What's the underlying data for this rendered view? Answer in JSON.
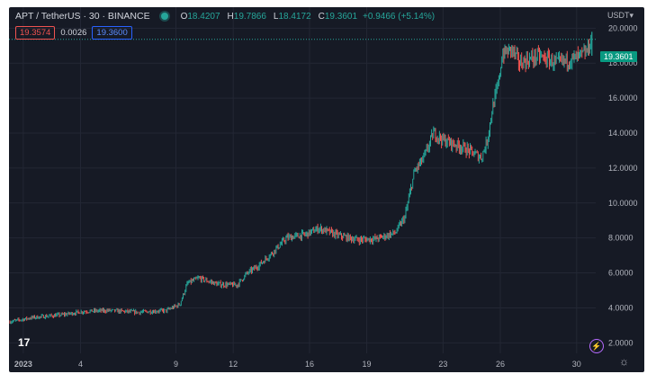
{
  "header": {
    "title": "APT / TetherUS · 30 · BINANCE",
    "ohlc": [
      {
        "key": "O",
        "value": "18.4207"
      },
      {
        "key": "H",
        "value": "19.7866"
      },
      {
        "key": "L",
        "value": "18.4172"
      },
      {
        "key": "C",
        "value": "19.3601"
      }
    ],
    "change": "+0.9466 (+5.14%)"
  },
  "bid_ask": {
    "bid": "19.3574",
    "spread": "0.0026",
    "ask": "19.3600"
  },
  "currency": "USDT▾",
  "last_price": "19.3601",
  "colors": {
    "up": "#26a69a",
    "down": "#ef5350",
    "background": "#161a25",
    "grid": "#232734"
  },
  "icons": {
    "logo": "tradingview-logo-icon",
    "flash": "lightning-icon",
    "settings": "gear-icon"
  },
  "chart_data": {
    "type": "candlestick",
    "x_tick_labels": [
      "2023",
      "4",
      "9",
      "12",
      "16",
      "19",
      "23",
      "26",
      "30"
    ],
    "x_tick_day": [
      1,
      4,
      9,
      12,
      16,
      19,
      23,
      26,
      30
    ],
    "y_tick_labels": [
      "2.0000",
      "4.0000",
      "6.0000",
      "8.0000",
      "10.0000",
      "12.0000",
      "14.0000",
      "16.0000",
      "18.0000",
      "20.0000"
    ],
    "y_ticks": [
      2,
      4,
      6,
      8,
      10,
      12,
      14,
      16,
      18,
      20
    ],
    "ylim": [
      1.4,
      21.2
    ],
    "xlim_day": [
      0.25,
      31.0
    ],
    "trend_points": [
      [
        0.25,
        3.2
      ],
      [
        1.5,
        3.45
      ],
      [
        3.0,
        3.6
      ],
      [
        4.2,
        3.8
      ],
      [
        5.5,
        3.85
      ],
      [
        7.0,
        3.75
      ],
      [
        8.5,
        3.85
      ],
      [
        9.2,
        4.2
      ],
      [
        9.6,
        5.4
      ],
      [
        10.2,
        5.7
      ],
      [
        11.2,
        5.35
      ],
      [
        12.2,
        5.3
      ],
      [
        12.7,
        5.95
      ],
      [
        13.3,
        6.4
      ],
      [
        14.0,
        7.1
      ],
      [
        14.8,
        8.0
      ],
      [
        15.8,
        8.2
      ],
      [
        16.5,
        8.55
      ],
      [
        17.5,
        8.15
      ],
      [
        18.5,
        7.9
      ],
      [
        19.5,
        7.95
      ],
      [
        20.5,
        8.3
      ],
      [
        21.0,
        9.2
      ],
      [
        21.5,
        11.8
      ],
      [
        22.0,
        12.6
      ],
      [
        22.5,
        14.0
      ],
      [
        23.0,
        13.6
      ],
      [
        24.0,
        13.2
      ],
      [
        25.0,
        12.6
      ],
      [
        25.3,
        13.5
      ],
      [
        25.6,
        15.5
      ],
      [
        25.9,
        16.8
      ],
      [
        26.1,
        18.5
      ],
      [
        26.6,
        18.8
      ],
      [
        27.0,
        18.0
      ],
      [
        28.0,
        18.4
      ],
      [
        29.0,
        18.0
      ],
      [
        30.0,
        18.3
      ],
      [
        30.5,
        18.6
      ],
      [
        30.8,
        19.36
      ]
    ]
  }
}
